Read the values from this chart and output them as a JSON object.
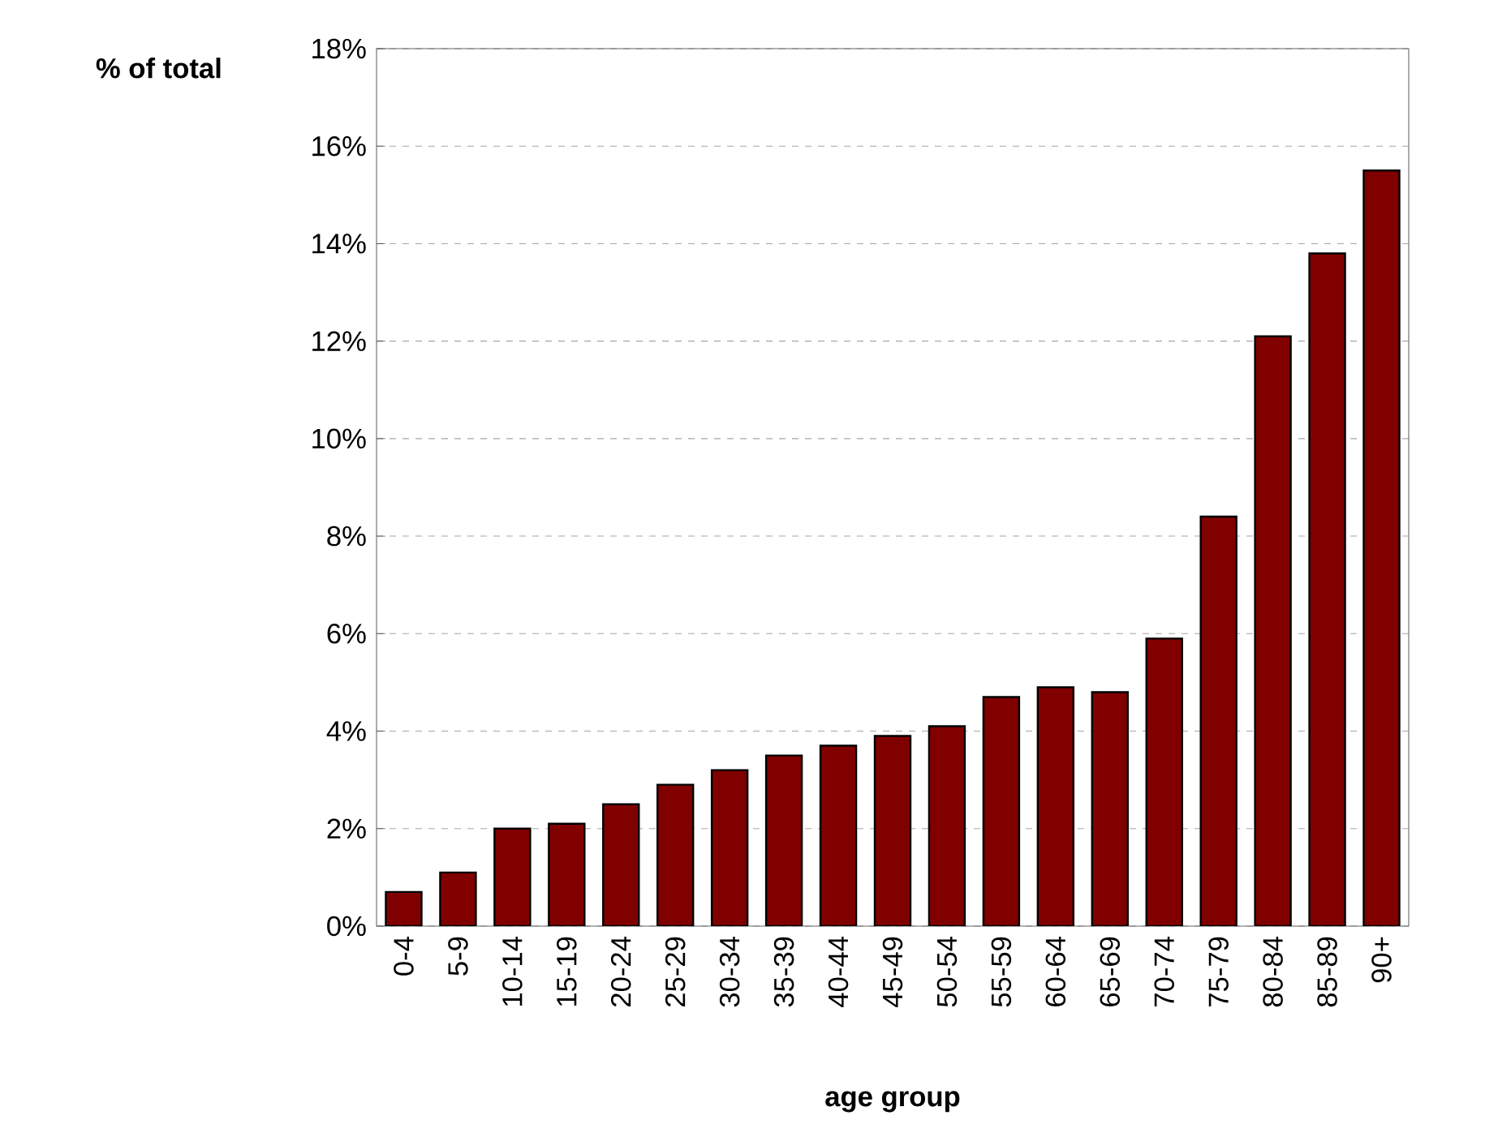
{
  "chart_data": {
    "type": "bar",
    "xlabel": "age group",
    "ylabel": "% of total",
    "categories": [
      "0-4",
      "5-9",
      "10-14",
      "15-19",
      "20-24",
      "25-29",
      "30-34",
      "35-39",
      "40-44",
      "45-49",
      "50-54",
      "55-59",
      "60-64",
      "65-69",
      "70-74",
      "75-79",
      "80-84",
      "85-89",
      "90+"
    ],
    "values": [
      0.7,
      1.1,
      2.0,
      2.1,
      2.5,
      2.9,
      3.2,
      3.5,
      3.7,
      3.9,
      4.1,
      4.7,
      4.9,
      4.8,
      5.9,
      8.4,
      12.1,
      13.8,
      15.5
    ],
    "color": "#800000",
    "ylim": [
      0,
      18
    ],
    "yticks": [
      {
        "value": 0,
        "label": "0%"
      },
      {
        "value": 2,
        "label": "2%"
      },
      {
        "value": 4,
        "label": "4%"
      },
      {
        "value": 6,
        "label": "6%"
      },
      {
        "value": 8,
        "label": "8%"
      },
      {
        "value": 10,
        "label": "10%"
      },
      {
        "value": 12,
        "label": "12%"
      },
      {
        "value": 14,
        "label": "14%"
      },
      {
        "value": 16,
        "label": "16%"
      },
      {
        "value": 18,
        "label": "18%"
      }
    ],
    "grid": "y"
  }
}
